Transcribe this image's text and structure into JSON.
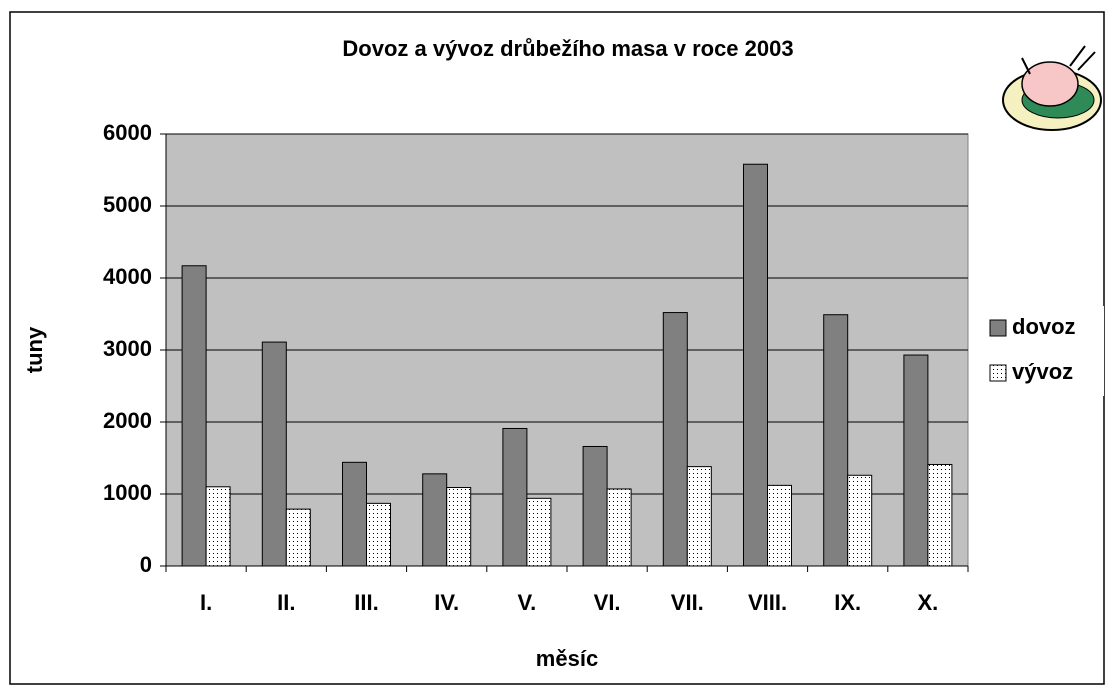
{
  "chart_data": {
    "type": "bar",
    "title": "Dovoz a vývoz drůbežího masa v roce 2003",
    "x_label": "měsíc",
    "y_label": "tuny",
    "categories": [
      "I.",
      "II.",
      "III.",
      "IV.",
      "V.",
      "VI.",
      "VII.",
      "VIII.",
      "IX.",
      "X."
    ],
    "series": [
      {
        "name": "dovoz",
        "color": "#808080",
        "values": [
          4170,
          3110,
          1440,
          1280,
          1910,
          1660,
          3520,
          5580,
          3490,
          2930
        ]
      },
      {
        "name": "vývoz",
        "color": "#ffffff",
        "pattern": "dots",
        "values": [
          1100,
          790,
          870,
          1090,
          940,
          1070,
          1380,
          1120,
          1260,
          1410
        ]
      }
    ],
    "ylim": [
      0,
      6000
    ],
    "yticks": [
      0,
      1000,
      2000,
      3000,
      4000,
      5000,
      6000
    ],
    "grid": true,
    "legend": "right"
  }
}
